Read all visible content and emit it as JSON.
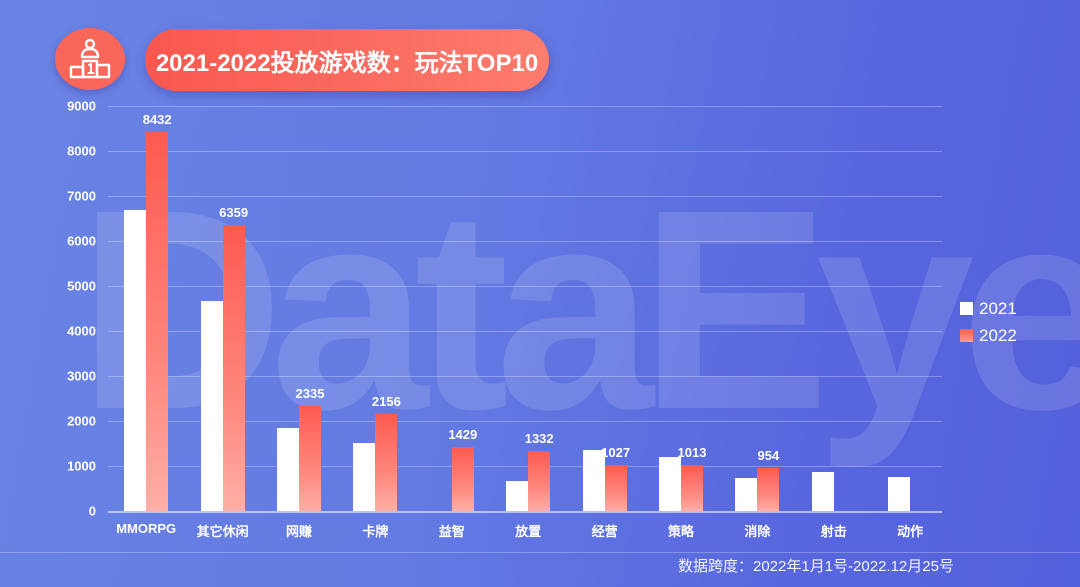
{
  "header": {
    "title": "2021-2022投放游戏数：玩法TOP10",
    "icon": "podium-icon"
  },
  "watermark": "DataEye",
  "footnote": "数据跨度：2022年1月1号-2022.12月25号",
  "colors": {
    "series_2021": "#ffffff",
    "series_2022": "#fd5a50",
    "background": "#5f74e0",
    "title_pill": "#fa6a5e"
  },
  "chart_data": {
    "type": "bar",
    "title": "2021-2022投放游戏数：玩法TOP10",
    "xlabel": "",
    "ylabel": "",
    "ylim": [
      0,
      9000
    ],
    "yticks": [
      0,
      1000,
      2000,
      3000,
      4000,
      5000,
      6000,
      7000,
      8000,
      9000
    ],
    "grid": true,
    "legend_position": "right",
    "categories": [
      "MMORPG",
      "其它休闲",
      "网赚",
      "卡牌",
      "益智",
      "放置",
      "经营",
      "策略",
      "消除",
      "射击",
      "动作"
    ],
    "series": [
      {
        "name": "2021",
        "values": [
          6700,
          4670,
          1840,
          1510,
          null,
          670,
          1360,
          1200,
          730,
          870,
          760
        ],
        "labeled": false
      },
      {
        "name": "2022",
        "values": [
          8432,
          6359,
          2335,
          2156,
          1429,
          1332,
          1027,
          1013,
          954,
          null,
          null
        ],
        "labeled": true
      }
    ]
  }
}
